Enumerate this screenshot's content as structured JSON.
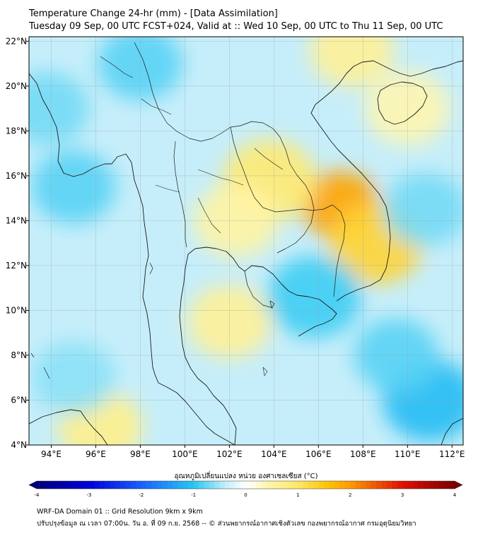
{
  "title_line1": "Temperature Change 24-hr (mm) - [Data Assimilation]",
  "title_line2": "Tuesday 09 Sep, 00 UTC FCST+024, Valid at :: Wed 10 Sep, 00 UTC to Thu 11 Sep, 00 UTC",
  "colorbar": {
    "label": "อุณหภูมิเปลี่ยนแปลง หน่วย องศาเซลเซียส (°C)",
    "tick_labels": [
      "-4",
      "-3",
      "-2",
      "-1",
      "0",
      "1",
      "2",
      "3",
      "4"
    ],
    "min": -4,
    "max": 4,
    "colors": [
      "#00007a",
      "#0000d8",
      "#1a60ff",
      "#26c6f2",
      "#bfeefa",
      "#ffffff",
      "#fff6b0",
      "#ffd000",
      "#ff8c00",
      "#e01000",
      "#7a0000"
    ]
  },
  "footer_line1": "WRF-DA Domain 01 :: Grid Resolution 9km x 9km",
  "footer_line2": "ปรับปรุงข้อมูล ณ เวลา 07:00น. วัน อ. ที่ 09 ก.ย. 2568 -- © ส่วนพยากรณ์อากาศเชิงตัวเลข กองพยากรณ์อากาศ กรมอุตุนิยมวิทยา",
  "chart_data": {
    "type": "heatmap",
    "x_axis": {
      "tick_labels": [
        "94°E",
        "96°E",
        "98°E",
        "100°E",
        "102°E",
        "104°E",
        "106°E",
        "108°E",
        "110°E",
        "112°E"
      ],
      "lon_values": [
        94,
        96,
        98,
        100,
        102,
        104,
        106,
        108,
        110,
        112
      ],
      "range": [
        93,
        112.5
      ]
    },
    "y_axis": {
      "tick_labels": [
        "4°N",
        "6°N",
        "8°N",
        "10°N",
        "12°N",
        "14°N",
        "16°N",
        "18°N",
        "20°N",
        "22°N"
      ],
      "lat_values": [
        4,
        6,
        8,
        10,
        12,
        14,
        16,
        18,
        20,
        22
      ],
      "range": [
        4,
        22.2
      ]
    },
    "grid": true,
    "features": [
      {
        "name": "warm-max-cambodia-laos",
        "lon": 107.0,
        "lat": 14.7,
        "value": 1.9
      },
      {
        "name": "warm-vietnam-coast",
        "lon": 108.6,
        "lat": 13.0,
        "value": 1.3
      },
      {
        "name": "warm-e-thailand",
        "lon": 103.8,
        "lat": 15.8,
        "value": 0.9
      },
      {
        "name": "warm-central",
        "lon": 102.3,
        "lat": 14.0,
        "value": 0.5
      },
      {
        "name": "warm-s-china",
        "lon": 107.5,
        "lat": 21.6,
        "value": 0.6
      },
      {
        "name": "warm-hainan",
        "lon": 110.0,
        "lat": 19.0,
        "value": 0.4
      },
      {
        "name": "warm-gulf",
        "lon": 102.0,
        "lat": 9.5,
        "value": 0.6
      },
      {
        "name": "warm-sumatra",
        "lon": 96.2,
        "lat": 4.8,
        "value": 0.7
      },
      {
        "name": "cool-andaman",
        "lon": 95.0,
        "lat": 15.5,
        "value": -0.8
      },
      {
        "name": "cool-myanmar-n",
        "lon": 98.0,
        "lat": 21.0,
        "value": -0.8
      },
      {
        "name": "cool-bay",
        "lon": 93.8,
        "lat": 19.0,
        "value": -0.7
      },
      {
        "name": "cool-s-sea",
        "lon": 111.0,
        "lat": 6.0,
        "value": -1.1
      },
      {
        "name": "cool-mekong",
        "lon": 105.8,
        "lat": 10.6,
        "value": -0.9
      },
      {
        "name": "cool-se",
        "lon": 109.5,
        "lat": 8.0,
        "value": -0.8
      },
      {
        "name": "cool-sw",
        "lon": 95.0,
        "lat": 7.0,
        "value": -0.6
      },
      {
        "name": "cool-ne",
        "lon": 110.8,
        "lat": 14.5,
        "value": -0.7
      }
    ]
  }
}
